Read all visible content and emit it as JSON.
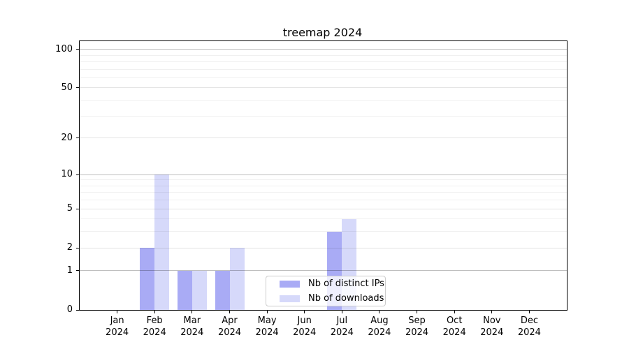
{
  "title": "treemap 2024",
  "colors": {
    "series_ips": "#a9abf5",
    "series_downloads": "#d6d9fa",
    "grid_major": "rgba(0,0,0,0.25)",
    "grid_mid": "rgba(0,0,0,0.105)",
    "grid_minor": "rgba(0,0,0,0.06)",
    "axis": "#000000",
    "legend_border": "#cccccc"
  },
  "chart_data": {
    "type": "bar",
    "title": "treemap 2024",
    "categories": [
      "Jan",
      "Feb",
      "Mar",
      "Apr",
      "May",
      "Jun",
      "Jul",
      "Aug",
      "Sep",
      "Oct",
      "Nov",
      "Dec"
    ],
    "year": "2024",
    "series": [
      {
        "name": "Nb of distinct IPs",
        "color": "#a9abf5",
        "values": [
          0,
          2,
          1,
          1,
          0,
          0,
          3,
          0,
          0,
          0,
          0,
          0
        ]
      },
      {
        "name": "Nb of downloads",
        "color": "#d6d9fa",
        "values": [
          0,
          10,
          1,
          2,
          0,
          0,
          4,
          0,
          0,
          0,
          0,
          0
        ]
      }
    ],
    "xlabel": "",
    "ylabel": "",
    "y_scale": "log1p",
    "ylim": [
      0,
      115.5
    ],
    "y_ticks": [
      0,
      1,
      2,
      5,
      10,
      20,
      50,
      100
    ],
    "y_gridlines_major": [
      1,
      10,
      100
    ],
    "y_gridlines_mid": [
      2,
      5,
      20,
      50
    ],
    "y_gridlines_minor": [
      3,
      4,
      6,
      7,
      8,
      9,
      30,
      40,
      60,
      70,
      80,
      90
    ],
    "grid": true,
    "legend_position": "lower center-left inside plot",
    "legend_entries": [
      "Nb of distinct IPs",
      "Nb of downloads"
    ]
  }
}
